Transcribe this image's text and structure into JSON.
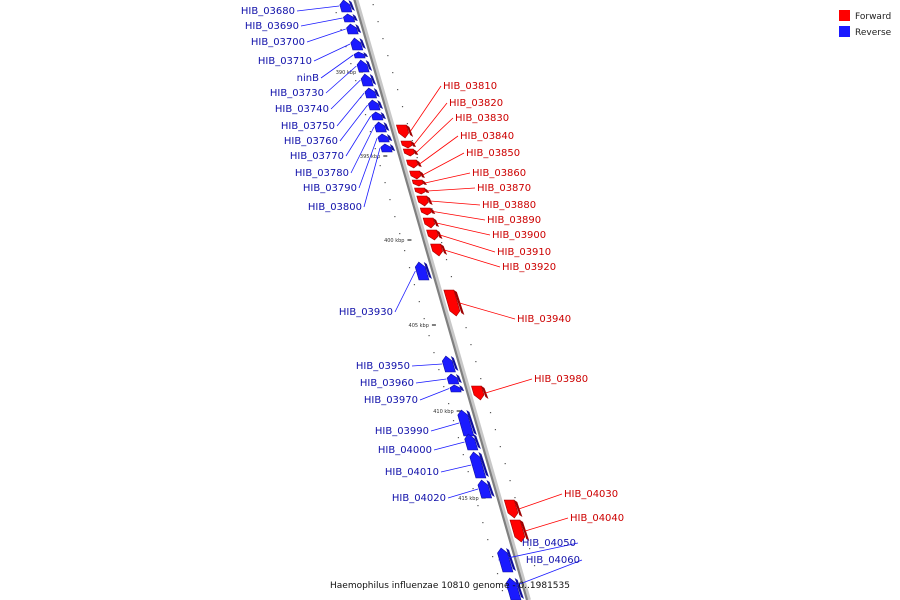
{
  "colors": {
    "forward": "#ff0000",
    "reverse": "#1a1aff",
    "backbone": "#808080",
    "caption": "#111111"
  },
  "legend": {
    "forward_label": "Forward",
    "reverse_label": "Reverse"
  },
  "caption": "Haemophilus influenzae 10810 genome - 0..1981535",
  "ticks": [
    "390 kbp",
    "395 kbp",
    "400 kbp",
    "405 kbp",
    "410 kbp",
    "415 kbp"
  ],
  "genes": [
    {
      "label": "HIB_03680",
      "strand": "reverse"
    },
    {
      "label": "HIB_03690",
      "strand": "reverse"
    },
    {
      "label": "HIB_03700",
      "strand": "reverse"
    },
    {
      "label": "HIB_03710",
      "strand": "reverse"
    },
    {
      "label": "ninB",
      "strand": "reverse"
    },
    {
      "label": "HIB_03730",
      "strand": "reverse"
    },
    {
      "label": "HIB_03740",
      "strand": "reverse"
    },
    {
      "label": "HIB_03750",
      "strand": "reverse"
    },
    {
      "label": "HIB_03760",
      "strand": "reverse"
    },
    {
      "label": "HIB_03770",
      "strand": "reverse"
    },
    {
      "label": "HIB_03780",
      "strand": "reverse"
    },
    {
      "label": "HIB_03790",
      "strand": "reverse"
    },
    {
      "label": "HIB_03800",
      "strand": "reverse"
    },
    {
      "label": "HIB_03810",
      "strand": "forward"
    },
    {
      "label": "HIB_03820",
      "strand": "forward"
    },
    {
      "label": "HIB_03830",
      "strand": "forward"
    },
    {
      "label": "HIB_03840",
      "strand": "forward"
    },
    {
      "label": "HIB_03850",
      "strand": "forward"
    },
    {
      "label": "HIB_03860",
      "strand": "forward"
    },
    {
      "label": "HIB_03870",
      "strand": "forward"
    },
    {
      "label": "HIB_03880",
      "strand": "forward"
    },
    {
      "label": "HIB_03890",
      "strand": "forward"
    },
    {
      "label": "HIB_03900",
      "strand": "forward"
    },
    {
      "label": "HIB_03910",
      "strand": "forward"
    },
    {
      "label": "HIB_03920",
      "strand": "forward"
    },
    {
      "label": "HIB_03930",
      "strand": "reverse"
    },
    {
      "label": "HIB_03940",
      "strand": "forward"
    },
    {
      "label": "HIB_03950",
      "strand": "reverse"
    },
    {
      "label": "HIB_03960",
      "strand": "reverse"
    },
    {
      "label": "HIB_03970",
      "strand": "reverse"
    },
    {
      "label": "HIB_03980",
      "strand": "forward"
    },
    {
      "label": "HIB_03990",
      "strand": "reverse"
    },
    {
      "label": "HIB_04000",
      "strand": "reverse"
    },
    {
      "label": "HIB_04010",
      "strand": "reverse"
    },
    {
      "label": "HIB_04020",
      "strand": "reverse"
    },
    {
      "label": "HIB_04030",
      "strand": "forward"
    },
    {
      "label": "HIB_04040",
      "strand": "forward"
    },
    {
      "label": "HIB_04050",
      "strand": "reverse"
    },
    {
      "label": "HIB_04060",
      "strand": "reverse"
    }
  ]
}
